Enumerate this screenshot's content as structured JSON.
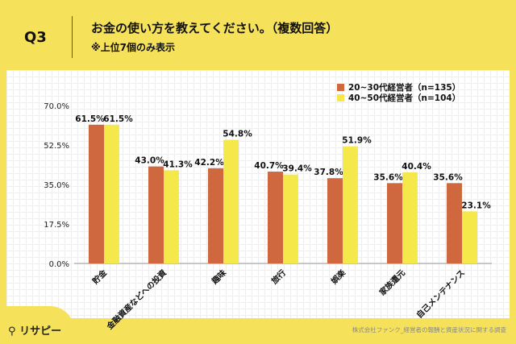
{
  "header": {
    "q": "Q3",
    "title": "お金の使い方を教えてください。（複数回答）",
    "subtitle": "※上位7個のみ表示"
  },
  "footer": {
    "logo": "リサピー",
    "source": "株式会社ファンク_経営者の報酬と資産状況に関する調査"
  },
  "chart_data": {
    "type": "bar",
    "categories": [
      "貯金",
      "金融資産などへの投資",
      "趣味",
      "旅行",
      "娯楽",
      "家族還元",
      "自己メンテナンス"
    ],
    "series": [
      {
        "name": "20~30代経営者（n=135）",
        "color": "#d0683f",
        "values": [
          61.5,
          43.0,
          42.2,
          40.7,
          37.8,
          35.6,
          35.6
        ]
      },
      {
        "name": "40~50代経営者（n=104）",
        "color": "#f4e84a",
        "values": [
          61.5,
          41.3,
          54.8,
          39.4,
          51.9,
          40.4,
          23.1
        ]
      }
    ],
    "yticks": [
      "0.0%",
      "17.5%",
      "35.0%",
      "52.5%",
      "70.0%"
    ],
    "ylim": [
      0,
      70
    ],
    "legend": "top-right",
    "grid": false
  }
}
